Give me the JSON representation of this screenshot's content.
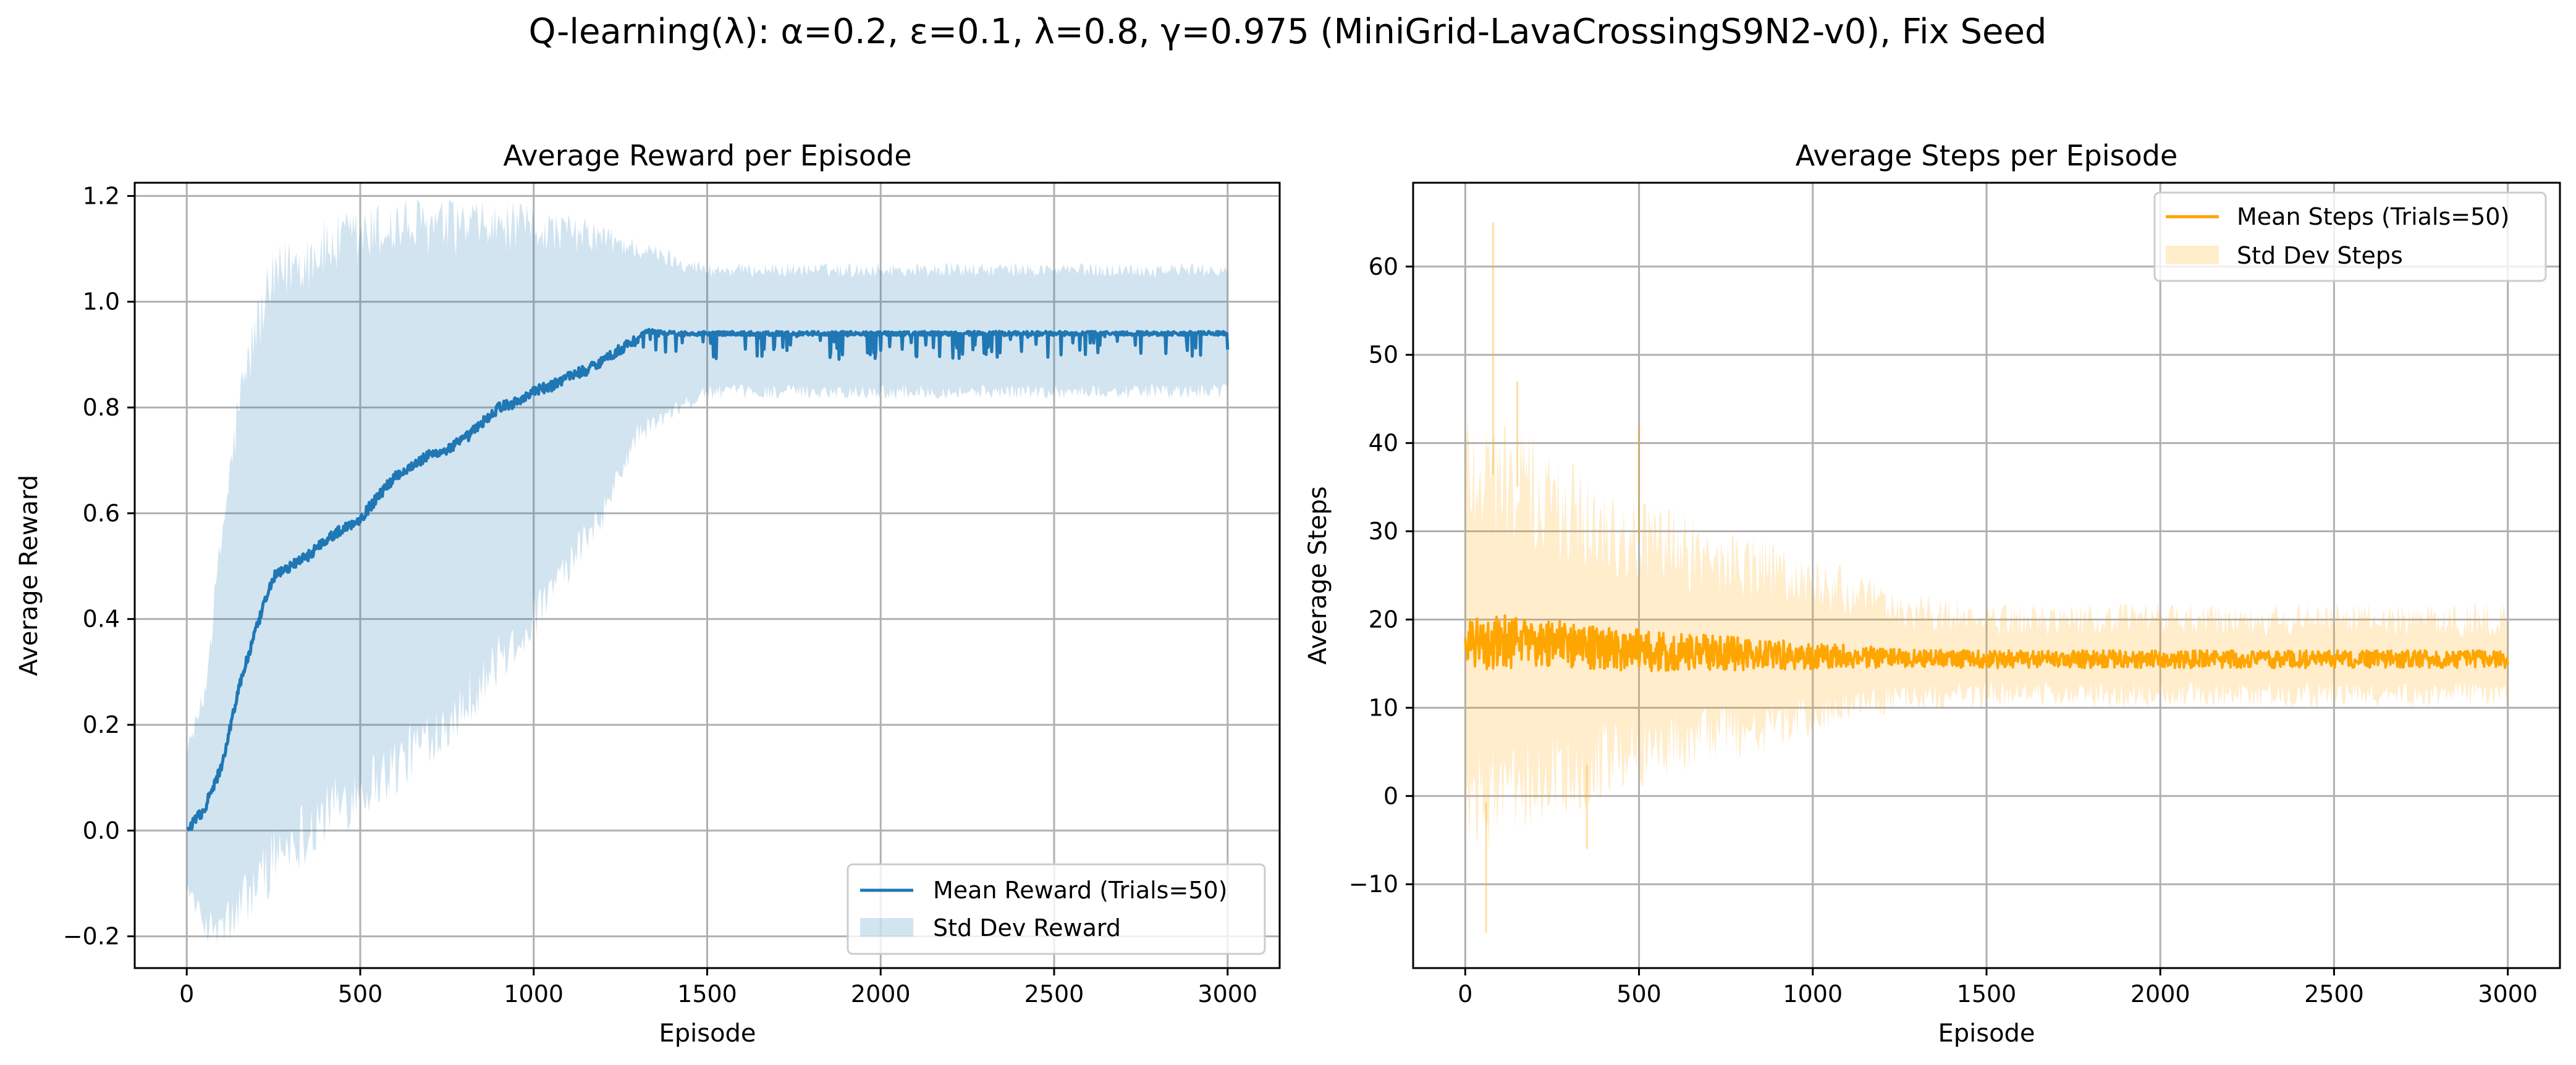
{
  "suptitle": "Q-learning(λ): α=0.2, ε=0.1, λ=0.8, γ=0.975 (MiniGrid-LavaCrossingS9N2-v0), Fix Seed",
  "colors": {
    "reward": "#1f77b4",
    "reward_band": "#1f77b4",
    "steps": "#ffa500",
    "steps_band": "#ffa500",
    "grid": "#b0b0b0"
  },
  "chart_data": [
    {
      "id": "reward",
      "type": "line",
      "title": "Average Reward per Episode",
      "xlabel": "Episode",
      "ylabel": "Average Reward",
      "xlim": [
        -150,
        3150
      ],
      "ylim": [
        -0.26,
        1.225
      ],
      "xticks": [
        0,
        500,
        1000,
        1500,
        2000,
        2500,
        3000
      ],
      "xtick_labels": [
        "0",
        "500",
        "1000",
        "1500",
        "2000",
        "2500",
        "3000"
      ],
      "yticks": [
        -0.2,
        0.0,
        0.2,
        0.4,
        0.6,
        0.8,
        1.0,
        1.2
      ],
      "ytick_labels": [
        "−0.2",
        "0.0",
        "0.2",
        "0.4",
        "0.6",
        "0.8",
        "1.0",
        "1.2"
      ],
      "grid": true,
      "legend_position": "lower-right",
      "n_episodes": 3000,
      "series": [
        {
          "name": "Mean Reward (Trials=50)",
          "kind": "line",
          "x": [
            0,
            25,
            50,
            100,
            150,
            200,
            250,
            300,
            350,
            400,
            450,
            500,
            550,
            600,
            650,
            700,
            750,
            800,
            850,
            900,
            950,
            1000,
            1050,
            1100,
            1150,
            1200,
            1250,
            1300,
            1320,
            1400,
            1600,
            2000,
            2500,
            3000
          ],
          "y": [
            0.0,
            0.02,
            0.04,
            0.12,
            0.27,
            0.38,
            0.48,
            0.5,
            0.52,
            0.55,
            0.57,
            0.59,
            0.63,
            0.67,
            0.69,
            0.71,
            0.72,
            0.74,
            0.77,
            0.8,
            0.81,
            0.83,
            0.84,
            0.86,
            0.87,
            0.89,
            0.91,
            0.93,
            0.945,
            0.94,
            0.94,
            0.94,
            0.94,
            0.94
          ]
        },
        {
          "name": "Std Dev Reward",
          "kind": "band",
          "x": [
            0,
            50,
            100,
            150,
            200,
            250,
            300,
            400,
            500,
            600,
            700,
            800,
            900,
            1000,
            1100,
            1200,
            1300,
            1500,
            2000,
            2500,
            3000
          ],
          "lower": [
            -0.1,
            -0.18,
            -0.19,
            -0.15,
            -0.1,
            -0.05,
            -0.02,
            0.03,
            0.08,
            0.12,
            0.18,
            0.24,
            0.32,
            0.4,
            0.5,
            0.6,
            0.75,
            0.83,
            0.83,
            0.83,
            0.83
          ],
          "upper": [
            0.15,
            0.25,
            0.55,
            0.8,
            0.95,
            1.03,
            1.07,
            1.1,
            1.12,
            1.14,
            1.14,
            1.14,
            1.14,
            1.14,
            1.13,
            1.12,
            1.1,
            1.06,
            1.06,
            1.06,
            1.06
          ]
        }
      ]
    },
    {
      "id": "steps",
      "type": "line",
      "title": "Average Steps per Episode",
      "xlabel": "Episode",
      "ylabel": "Average Steps",
      "xlim": [
        -150,
        3150
      ],
      "ylim": [
        -19.5,
        69.5
      ],
      "xticks": [
        0,
        500,
        1000,
        1500,
        2000,
        2500,
        3000
      ],
      "xtick_labels": [
        "0",
        "500",
        "1000",
        "1500",
        "2000",
        "2500",
        "3000"
      ],
      "yticks": [
        -10,
        0,
        10,
        20,
        30,
        40,
        50,
        60
      ],
      "ytick_labels": [
        "−10",
        "0",
        "10",
        "20",
        "30",
        "40",
        "50",
        "60"
      ],
      "grid": true,
      "legend_position": "upper-right",
      "n_episodes": 3000,
      "series": [
        {
          "name": "Mean Steps (Trials=50)",
          "kind": "line",
          "x": [
            0,
            100,
            300,
            500,
            700,
            900,
            1100,
            1300,
            1500,
            2000,
            2500,
            3000
          ],
          "y": [
            17.5,
            17.5,
            17.0,
            16.5,
            16.2,
            16.0,
            15.8,
            15.6,
            15.5,
            15.5,
            15.5,
            15.5
          ]
        },
        {
          "name": "Std Dev Steps",
          "kind": "band",
          "x": [
            0,
            100,
            300,
            500,
            700,
            900,
            1100,
            1250,
            1500,
            2000,
            2500,
            3000
          ],
          "lower": [
            -2,
            0,
            3,
            5,
            7,
            8,
            10,
            11,
            11.5,
            11.5,
            11.5,
            11.5
          ],
          "upper": [
            38,
            36,
            32,
            29,
            27,
            25,
            23,
            21,
            20,
            20,
            20,
            20
          ]
        }
      ]
    }
  ]
}
